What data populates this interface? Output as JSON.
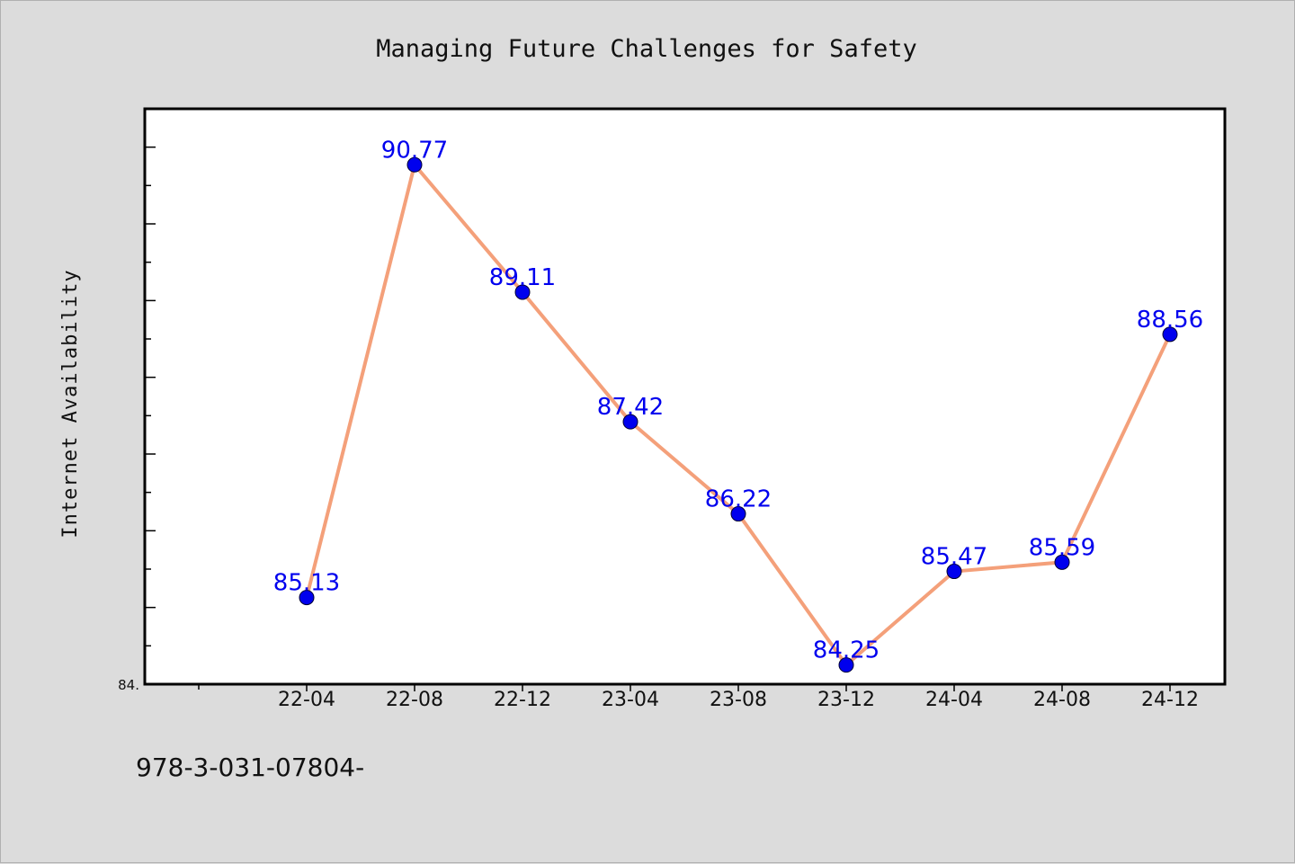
{
  "chart_data": {
    "type": "line",
    "title": "Managing Future Challenges for Safety",
    "xlabel": "",
    "ylabel": "Internet Availability",
    "categories": [
      "22-04",
      "22-08",
      "22-12",
      "23-04",
      "23-08",
      "23-12",
      "24-04",
      "24-08",
      "24-12"
    ],
    "series": [
      {
        "values": [
          85.13,
          90.77,
          89.11,
          87.42,
          86.22,
          84.25,
          85.47,
          85.59,
          88.56
        ],
        "data_labels": [
          "85.13",
          "90.77",
          "89.11",
          "87.42",
          "86.22",
          "84.25",
          "85.47",
          "85.59",
          "88.56"
        ],
        "line_color": "#f4a07a",
        "marker_color": "#0000ee"
      }
    ],
    "ylim": [
      84.0,
      91.5
    ],
    "y_tick_label": "84.",
    "grid": false,
    "legend": "none"
  },
  "footer": {
    "text": "978-3-031-07804-"
  }
}
